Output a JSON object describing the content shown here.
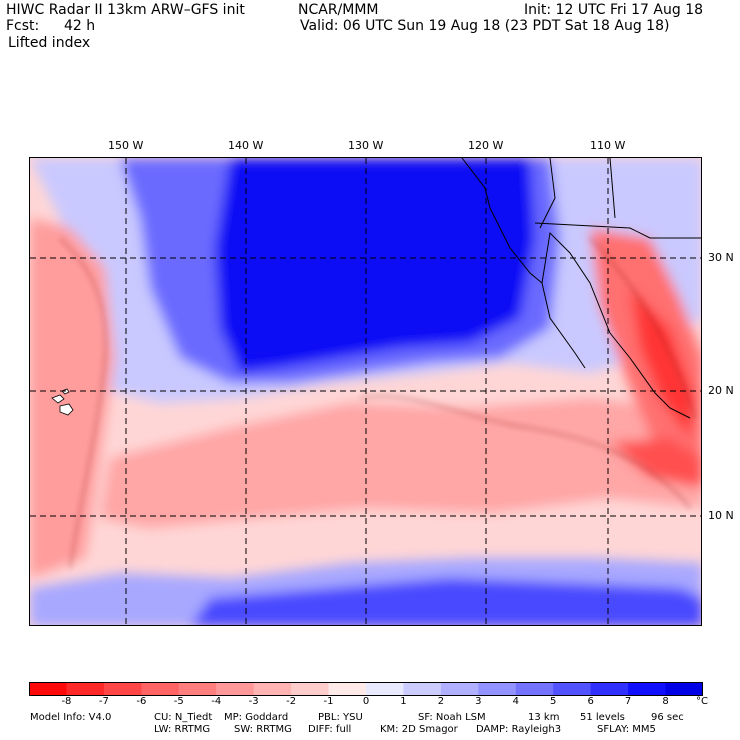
{
  "header": {
    "title": "HIWC Radar II 13km ARW–GFS init",
    "org": "NCAR/MMM",
    "init": "Init: 12 UTC Fri 17 Aug 18",
    "fcst_label": "Fcst:",
    "fcst_value": "42 h",
    "valid": "Valid: 06 UTC Sun 19 Aug 18 (23 PDT Sat 18 Aug 18)",
    "field": "Lifted index"
  },
  "map": {
    "lon_labels": [
      "150 W",
      "140 W",
      "130 W",
      "120 W",
      "110 W"
    ],
    "lat_labels": [
      "30 N",
      "20 N",
      "10 N"
    ],
    "gridlines": "dashed"
  },
  "colorbar": {
    "unit": "°C",
    "ticks": [
      "-8",
      "-7",
      "-6",
      "-5",
      "-4",
      "-3",
      "-2",
      "-1",
      "0",
      "1",
      "2",
      "3",
      "4",
      "5",
      "6",
      "7",
      "8"
    ],
    "colors": [
      "#ff0a0a",
      "#ff2828",
      "#ff4646",
      "#ff6464",
      "#ff7f7f",
      "#ff9999",
      "#ffb3b3",
      "#ffcccc",
      "#ffeaea",
      "#eaeaff",
      "#ccccff",
      "#b0b0ff",
      "#9393ff",
      "#7373ff",
      "#5252ff",
      "#3131ff",
      "#1010ff",
      "#0000e6"
    ]
  },
  "footer": {
    "line1": [
      "Model Info: V4.0",
      "CU: N_Tiedt",
      "MP: Goddard",
      "PBL: YSU",
      "SF: Noah LSM",
      "13 km",
      "51 levels",
      "96 sec"
    ],
    "line2": [
      "LW: RRTMG",
      "SW: RRTMG",
      "DIFF: full",
      "KM: 2D Smagor",
      "DAMP: Rayleigh3",
      "SFLAY: MM5"
    ]
  }
}
